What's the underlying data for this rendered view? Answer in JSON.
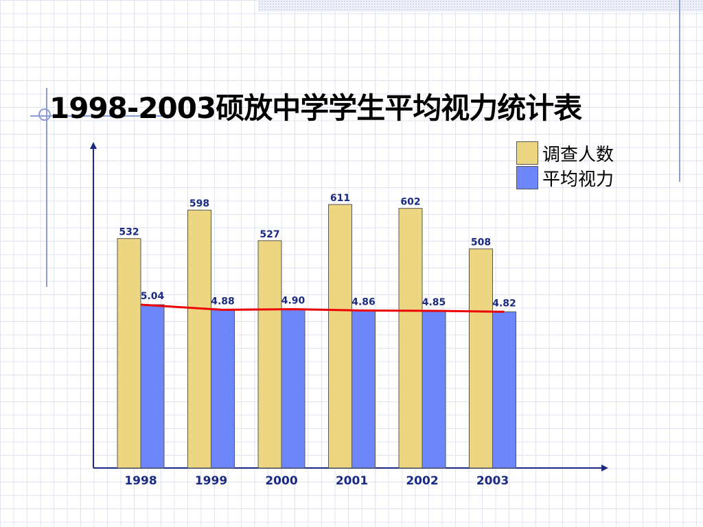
{
  "title": "1998-2003硕放中学学生平均视力统计表",
  "colors": {
    "bar_survey": "#ecd682",
    "bar_vision": "#6d87fb",
    "line_vision": "#ee0000",
    "axis": "#1a2a80",
    "label_text": "#1a2a80",
    "bar_border": "#555555"
  },
  "chart_data": {
    "type": "bar",
    "title": "1998-2003硕放中学学生平均视力统计表",
    "categories": [
      "1998",
      "1999",
      "2000",
      "2001",
      "2002",
      "2003"
    ],
    "series": [
      {
        "name": "调查人数",
        "values": [
          532,
          598,
          527,
          611,
          602,
          508
        ],
        "labels": [
          "532",
          "598",
          "527",
          "611",
          "602",
          "508"
        ]
      },
      {
        "name": "平均视力",
        "values": [
          5.04,
          4.88,
          4.9,
          4.86,
          4.85,
          4.82
        ],
        "labels": [
          "5.04",
          "4.88",
          "4.90",
          "4.86",
          "4.85",
          "4.82"
        ],
        "overlay_line": true
      }
    ],
    "legend_position": "top-right",
    "grid": false,
    "xlabel": "",
    "ylabel": ""
  }
}
